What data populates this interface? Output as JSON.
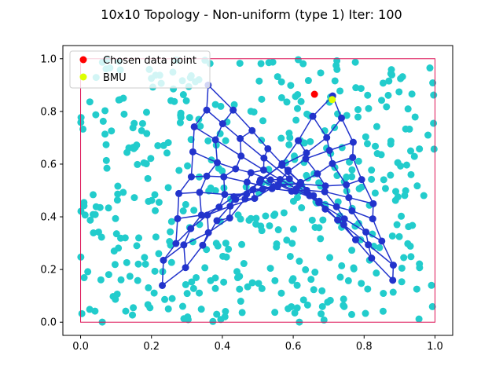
{
  "chart_data": {
    "type": "scatter",
    "title": "10x10 Topology - Non-uniform (type 1) Iter: 100",
    "xlabel": "",
    "ylabel": "",
    "xlim": [
      -0.05,
      1.05
    ],
    "ylim": [
      -0.05,
      1.05
    ],
    "xticks": [
      "0.0",
      "0.2",
      "0.4",
      "0.6",
      "0.8",
      "1.0"
    ],
    "yticks": [
      "0.0",
      "0.2",
      "0.4",
      "0.6",
      "0.8",
      "1.0"
    ],
    "grid": false,
    "legend_position": "top-left",
    "legend": [
      {
        "label": "Chosen data point",
        "color": "#ff0000"
      },
      {
        "label": "BMU",
        "color": "#ddff00"
      }
    ],
    "colors": {
      "data_points": "#22cccc",
      "som_nodes": "#2233cc",
      "som_edges": "#2233cc",
      "boundary": "#dd1155"
    },
    "boundary_rect": {
      "x0": 0,
      "y0": 0,
      "x1": 1,
      "y1": 1
    },
    "chosen_point": [
      0.66,
      0.865
    ],
    "bmu": [
      0.71,
      0.845
    ],
    "data_points_count": 450,
    "data_points_seed": 7,
    "som_grid": {
      "rows": 10,
      "cols": 10,
      "corners": {
        "r0c0": [
          0.36,
          0.9
        ],
        "r0c9": [
          0.89,
          0.15
        ],
        "r9c0": [
          0.23,
          0.14
        ],
        "r9c9": [
          0.72,
          0.85
        ]
      }
    }
  }
}
